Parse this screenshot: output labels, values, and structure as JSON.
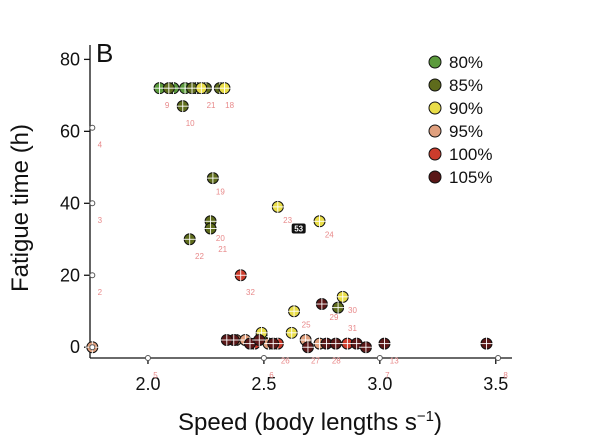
{
  "chart_data": {
    "type": "scatter",
    "panel_label": "B",
    "xlabel_main": "Speed (body lengths s",
    "xlabel_sup": "−1",
    "xlabel_end": ")",
    "ylabel": "Fatigue time (h)",
    "xlim": [
      1.75,
      3.57
    ],
    "ylim": [
      -3,
      84
    ],
    "x_ticks": [
      2.0,
      2.5,
      3.0,
      3.5
    ],
    "x_tick_labels": [
      "2.0",
      "2.5",
      "3.0",
      "3.5"
    ],
    "y_ticks": [
      0,
      20,
      40,
      60,
      80
    ],
    "y_tick_labels": [
      "0",
      "20",
      "40",
      "60",
      "80"
    ],
    "legend_position": "top-right",
    "series": [
      {
        "name": "80%",
        "color": "#5b9a3c",
        "points": [
          {
            "x": 2.05,
            "y": 72
          },
          {
            "x": 2.11,
            "y": 72
          },
          {
            "x": 2.16,
            "y": 72
          },
          {
            "x": 2.21,
            "y": 72
          }
        ]
      },
      {
        "name": "85%",
        "color": "#5e6b1c",
        "points": [
          {
            "x": 2.09,
            "y": 72
          },
          {
            "x": 2.15,
            "y": 67
          },
          {
            "x": 2.19,
            "y": 72
          },
          {
            "x": 2.25,
            "y": 72
          },
          {
            "x": 2.31,
            "y": 72
          },
          {
            "x": 2.28,
            "y": 47
          },
          {
            "x": 2.27,
            "y": 35
          },
          {
            "x": 2.27,
            "y": 33
          },
          {
            "x": 2.18,
            "y": 30
          },
          {
            "x": 2.49,
            "y": 3
          },
          {
            "x": 2.82,
            "y": 11
          }
        ]
      },
      {
        "name": "90%",
        "color": "#e9dd48",
        "points": [
          {
            "x": 2.23,
            "y": 72
          },
          {
            "x": 2.33,
            "y": 72
          },
          {
            "x": 2.56,
            "y": 39
          },
          {
            "x": 2.74,
            "y": 35
          },
          {
            "x": 2.63,
            "y": 10
          },
          {
            "x": 2.84,
            "y": 14
          },
          {
            "x": 2.62,
            "y": 4
          },
          {
            "x": 2.49,
            "y": 4
          }
        ]
      },
      {
        "name": "95%",
        "color": "#e0a07e",
        "points": [
          {
            "x": 2.38,
            "y": 2
          },
          {
            "x": 2.42,
            "y": 2
          },
          {
            "x": 2.52,
            "y": 1
          },
          {
            "x": 2.68,
            "y": 2
          },
          {
            "x": 2.74,
            "y": 1
          },
          {
            "x": 1.76,
            "y": 0
          }
        ]
      },
      {
        "name": "100%",
        "color": "#cc3c2c",
        "points": [
          {
            "x": 2.4,
            "y": 20
          },
          {
            "x": 2.46,
            "y": 1
          },
          {
            "x": 2.56,
            "y": 1
          },
          {
            "x": 2.86,
            "y": 1
          }
        ]
      },
      {
        "name": "105%",
        "color": "#5a1717",
        "points": [
          {
            "x": 2.37,
            "y": 2
          },
          {
            "x": 2.44,
            "y": 1
          },
          {
            "x": 2.48,
            "y": 2
          },
          {
            "x": 2.54,
            "y": 1
          },
          {
            "x": 2.69,
            "y": 0
          },
          {
            "x": 2.77,
            "y": 1
          },
          {
            "x": 2.81,
            "y": 1
          },
          {
            "x": 2.9,
            "y": 1
          },
          {
            "x": 2.94,
            "y": 0
          },
          {
            "x": 3.02,
            "y": 1
          },
          {
            "x": 3.46,
            "y": 1
          },
          {
            "x": 2.75,
            "y": 12
          },
          {
            "x": 2.34,
            "y": 2
          }
        ]
      }
    ],
    "zero_markers": [
      {
        "x": 1.76,
        "y": 61
      },
      {
        "x": 1.76,
        "y": 40
      },
      {
        "x": 1.76,
        "y": 20
      },
      {
        "x": 1.76,
        "y": 0
      },
      {
        "x": 2.0,
        "y": -3
      },
      {
        "x": 2.5,
        "y": -3
      },
      {
        "x": 3.0,
        "y": -3
      },
      {
        "x": 3.51,
        "y": -3
      }
    ],
    "point_labels": [
      {
        "text": "4",
        "x": 1.77,
        "y": 58
      },
      {
        "text": "3",
        "x": 1.77,
        "y": 37
      },
      {
        "text": "2",
        "x": 1.77,
        "y": 17
      },
      {
        "text": "5",
        "x": 2.01,
        "y": -6
      },
      {
        "text": "6",
        "x": 2.51,
        "y": -6
      },
      {
        "text": "7",
        "x": 3.01,
        "y": -6
      },
      {
        "text": "8",
        "x": 3.52,
        "y": -6
      },
      {
        "text": "9",
        "x": 2.06,
        "y": 69
      },
      {
        "text": "10",
        "x": 2.15,
        "y": 64
      },
      {
        "text": "21",
        "x": 2.24,
        "y": 69
      },
      {
        "text": "19",
        "x": 2.28,
        "y": 45
      },
      {
        "text": "20",
        "x": 2.28,
        "y": 32
      },
      {
        "text": "21",
        "x": 2.29,
        "y": 29
      },
      {
        "text": "22",
        "x": 2.19,
        "y": 27
      },
      {
        "text": "23",
        "x": 2.57,
        "y": 37
      },
      {
        "text": "24",
        "x": 2.75,
        "y": 33
      },
      {
        "text": "32",
        "x": 2.41,
        "y": 17
      },
      {
        "text": "25",
        "x": 2.65,
        "y": 8
      },
      {
        "text": "29",
        "x": 2.77,
        "y": 10
      },
      {
        "text": "30",
        "x": 2.85,
        "y": 12
      },
      {
        "text": "31",
        "x": 2.85,
        "y": 7
      },
      {
        "text": "26",
        "x": 2.56,
        "y": -2
      },
      {
        "text": "27",
        "x": 2.69,
        "y": -2
      },
      {
        "text": "28",
        "x": 2.78,
        "y": -2
      },
      {
        "text": "13",
        "x": 3.03,
        "y": -2
      },
      {
        "text": "18",
        "x": 2.32,
        "y": 69
      }
    ],
    "annotation_box": {
      "text": "53",
      "x": 2.65,
      "y": 33
    }
  }
}
